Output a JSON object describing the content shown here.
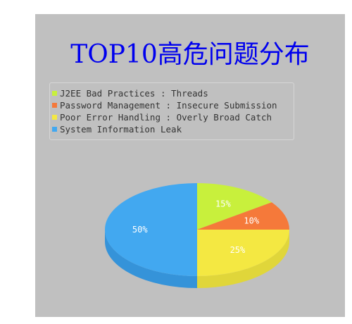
{
  "chart_data": {
    "type": "pie",
    "title": "TOP10高危问题分布",
    "legend_position": "top-left",
    "slices": [
      {
        "name": "J2EE Bad Practices : Threads",
        "value": 15,
        "label": "15%",
        "color": "#c8f03c",
        "side_color": "#a3c22f"
      },
      {
        "name": "Password Management : Insecure Submission",
        "value": 10,
        "label": "10%",
        "color": "#f5793a",
        "side_color": "#c9602c"
      },
      {
        "name": "Poor Error Handling : Overly Broad Catch",
        "value": 25,
        "label": "25%",
        "color": "#f4e842",
        "side_color": "#e0d63a"
      },
      {
        "name": "System Information Leak",
        "value": 50,
        "label": "50%",
        "color": "#42a8f0",
        "side_color": "#3593d9"
      }
    ]
  }
}
